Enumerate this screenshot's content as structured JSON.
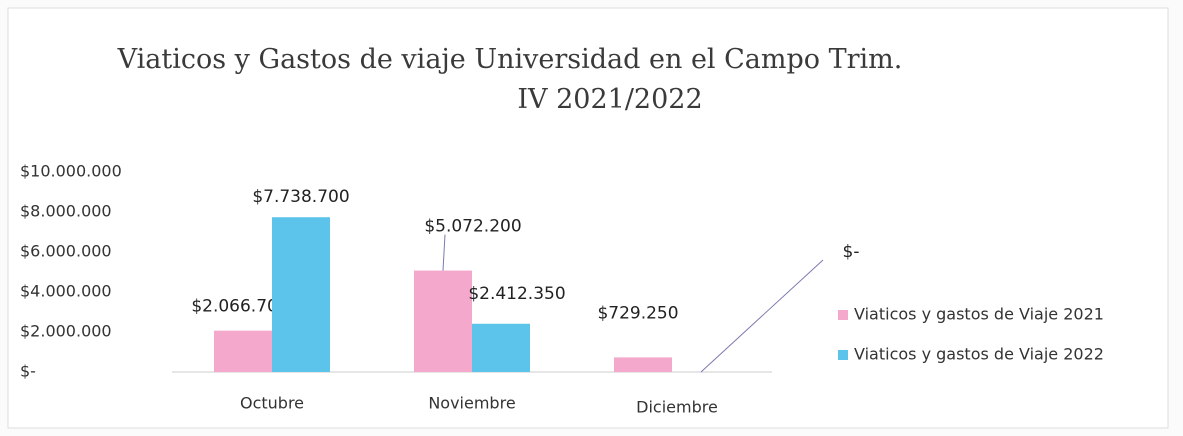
{
  "chart_data": {
    "type": "bar",
    "title": "Viaticos y Gastos de viaje Universidad en el Campo Trim. IV 2021/2022",
    "categories": [
      "Octubre",
      "Noviembre",
      "Diciembre"
    ],
    "series": [
      {
        "name": "Viaticos y gastos de Viaje 2021",
        "color": "#f4a8cb",
        "values": [
          2066700,
          5072200,
          729250
        ],
        "value_labels": [
          "$2.066.700",
          "$5.072.200",
          "$729.250"
        ]
      },
      {
        "name": "Viaticos y gastos de Viaje 2022",
        "color": "#5cc3ea",
        "values": [
          7738700,
          2412350,
          0
        ],
        "value_labels": [
          "$7.738.700",
          "$2.412.350",
          "$-"
        ]
      }
    ],
    "ylim": [
      0,
      10000000
    ],
    "yticks": [
      {
        "value": 0,
        "label": "$-"
      },
      {
        "value": 2000000,
        "label": "$2.000.000"
      },
      {
        "value": 4000000,
        "label": "$4.000.000"
      },
      {
        "value": 6000000,
        "label": "$6.000.000"
      },
      {
        "value": 8000000,
        "label": "$8.000.000"
      },
      {
        "value": 10000000,
        "label": "$10.000.000"
      }
    ],
    "grid": false,
    "legend": "right"
  }
}
